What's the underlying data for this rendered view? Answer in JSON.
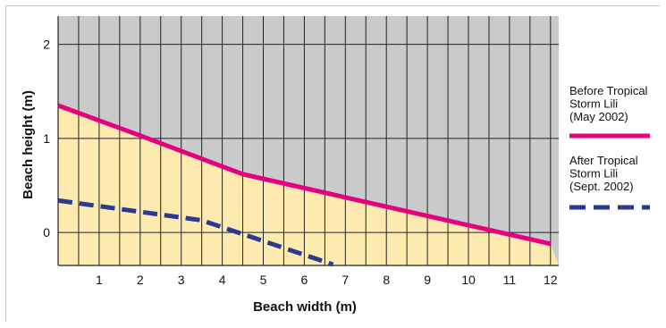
{
  "chart_data": {
    "type": "line",
    "xlabel": "Beach width (m)",
    "ylabel": "Beach height (m)",
    "xlim": [
      0,
      12.2
    ],
    "ylim": [
      -0.35,
      2.3
    ],
    "x_ticks": [
      1,
      2,
      3,
      4,
      5,
      6,
      7,
      8,
      9,
      10,
      11,
      12
    ],
    "x_tick_labels": [
      "1",
      "2",
      "3",
      "4",
      "5",
      "6",
      "7",
      "8",
      "9",
      "10",
      "11",
      "12"
    ],
    "y_ticks": [
      0,
      1,
      2
    ],
    "y_tick_labels": [
      "0",
      "1",
      "2"
    ],
    "x_gridlines": [
      0.5,
      1,
      1.5,
      2,
      2.5,
      3,
      3.5,
      4,
      4.5,
      5,
      5.5,
      6,
      6.5,
      7,
      7.5,
      8,
      8.5,
      9,
      9.5,
      10,
      10.5,
      11,
      11.5,
      12
    ],
    "grid": true,
    "legend_position": "right",
    "sky_color": "#c9cacc",
    "sand_color": "#fdeaae",
    "series": [
      {
        "name_lines": [
          "Before Tropical",
          "Storm  Lili",
          "(May  2002)"
        ],
        "color": "#e6007e",
        "dash": "solid",
        "x": [
          0,
          2,
          4.5,
          12
        ],
        "y": [
          1.35,
          1.03,
          0.62,
          -0.12
        ]
      },
      {
        "name_lines": [
          "After Tropical",
          "Storm  Lili",
          "(Sept.  2002)"
        ],
        "color": "#2b3990",
        "dash": "dashed",
        "x": [
          0,
          3.5,
          6.7
        ],
        "y": [
          0.34,
          0.13,
          -0.34
        ]
      }
    ],
    "sand_surface": {
      "x": [
        0,
        2,
        4.5,
        12,
        12.2
      ],
      "y": [
        1.35,
        1.03,
        0.62,
        -0.12,
        -0.35
      ]
    }
  }
}
